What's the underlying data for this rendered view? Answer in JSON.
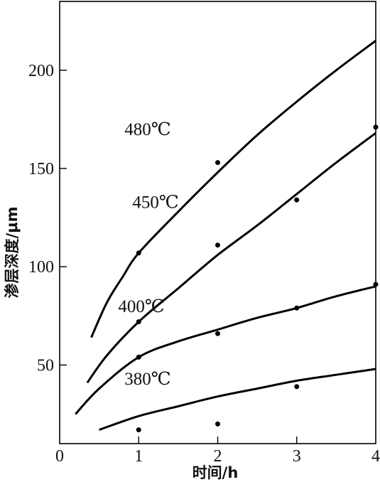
{
  "chart_data": {
    "type": "line",
    "title": "",
    "xlabel": "时间/h",
    "ylabel": "渗层深度/μm",
    "xlim": [
      0,
      4
    ],
    "ylim": [
      10,
      235
    ],
    "x_ticks": [
      0,
      1,
      2,
      3,
      4
    ],
    "y_ticks": [
      50,
      100,
      150,
      200
    ],
    "grid": false,
    "series": [
      {
        "name": "480℃",
        "curve_x": [
          0.4,
          0.6,
          0.8,
          1.0,
          1.5,
          2.0,
          2.5,
          3.0,
          3.5,
          4.0
        ],
        "curve_y": [
          64,
          82,
          95,
          107,
          128,
          148,
          167,
          184,
          200,
          215
        ],
        "points": [
          [
            1,
            107
          ],
          [
            2,
            153
          ],
          [
            4,
            171
          ]
        ]
      },
      {
        "name": "450℃",
        "curve_x": [
          0.35,
          0.6,
          1.0,
          1.5,
          2.0,
          2.5,
          3.0,
          3.5,
          4.0
        ],
        "curve_y": [
          41,
          55,
          72,
          89,
          106,
          121,
          137,
          153,
          168
        ],
        "points": [
          [
            1,
            72
          ],
          [
            2,
            111
          ],
          [
            3,
            134
          ],
          [
            4,
            171
          ]
        ]
      },
      {
        "name": "400℃",
        "curve_x": [
          0.2,
          0.5,
          1.0,
          1.5,
          2.0,
          2.5,
          3.0,
          3.5,
          4.0
        ],
        "curve_y": [
          25,
          38,
          54,
          62,
          68,
          74,
          79,
          85,
          90
        ],
        "points": [
          [
            1,
            54
          ],
          [
            2,
            66
          ],
          [
            3,
            79
          ],
          [
            4,
            91
          ]
        ]
      },
      {
        "name": "380℃",
        "curve_x": [
          0.5,
          1.0,
          1.5,
          2.0,
          2.5,
          3.0,
          3.5,
          4.0
        ],
        "curve_y": [
          17,
          24,
          29,
          34,
          38,
          42,
          45,
          48
        ],
        "points": [
          [
            1,
            17
          ],
          [
            2,
            20
          ],
          [
            3,
            39
          ]
        ]
      }
    ],
    "curve_labels": [
      {
        "text": "480℃",
        "at": [
          0.82,
          167
        ]
      },
      {
        "text": "450℃",
        "at": [
          0.92,
          130
        ]
      },
      {
        "text": "400℃",
        "at": [
          0.74,
          77
        ]
      },
      {
        "text": "380℃",
        "at": [
          0.82,
          40
        ]
      }
    ]
  }
}
